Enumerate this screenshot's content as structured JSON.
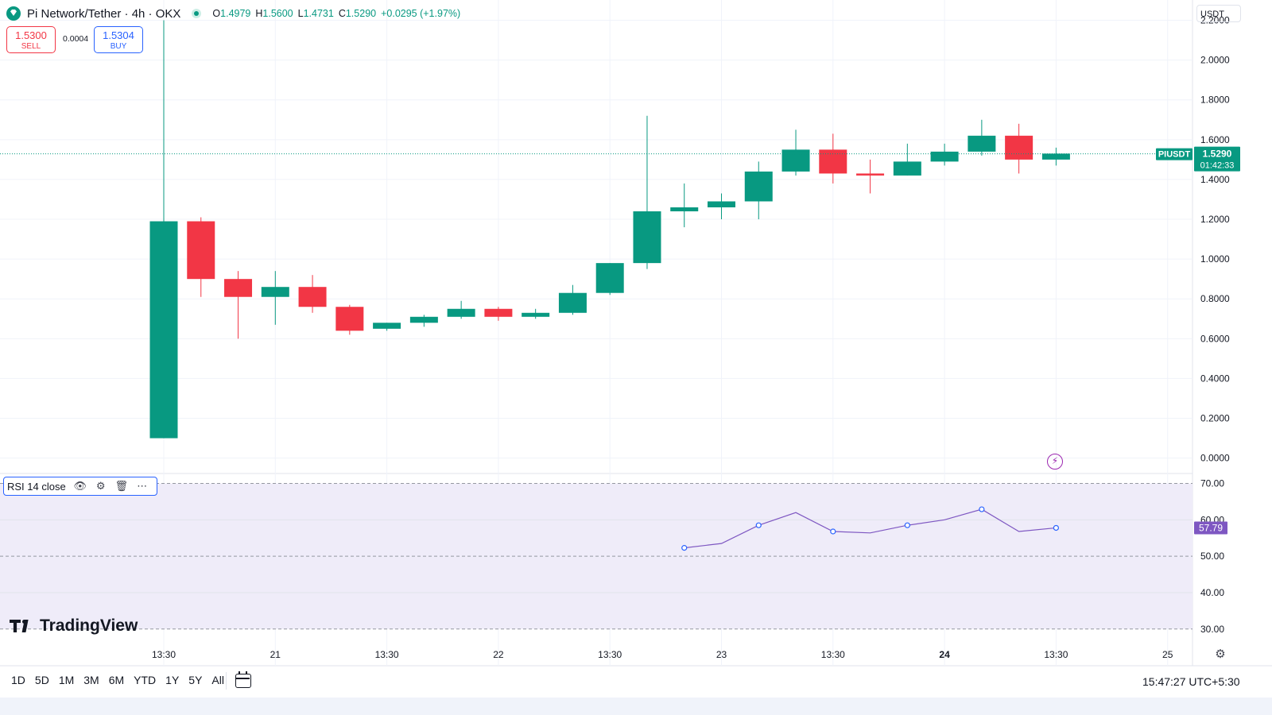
{
  "header": {
    "title": "Pi Network/Tether · 4h · OKX",
    "ohlc": {
      "o_label": "O",
      "o": "1.4979",
      "h_label": "H",
      "h": "1.5600",
      "l_label": "L",
      "l": "1.4731",
      "c_label": "C",
      "c": "1.5290",
      "change": "+0.0295 (+1.97%)"
    },
    "sell": {
      "price": "1.5300",
      "label": "SELL"
    },
    "buy": {
      "price": "1.5304",
      "label": "BUY"
    },
    "spread": "0.0004",
    "currency": "USDT"
  },
  "price_badge": {
    "symbol": "PIUSDT",
    "price": "1.5290",
    "countdown": "01:42:33",
    "value": 1.529
  },
  "rsi": {
    "legend": "RSI 14 close",
    "value_label": "57.79"
  },
  "branding": "TradingView",
  "footer": {
    "ranges": [
      "1D",
      "5D",
      "1M",
      "3M",
      "6M",
      "YTD",
      "1Y",
      "5Y",
      "All"
    ],
    "clock": "15:47:27 UTC+5:30"
  },
  "colors": {
    "up": "#089981",
    "down": "#f23645",
    "rsi_line": "#7e57c2",
    "rsi_band": "#efecf9",
    "badge_rsi": "#7e57c2"
  },
  "icons": {
    "eye": "eye-icon",
    "settings": "gear-icon",
    "delete": "trash-icon",
    "more": "more-icon",
    "alert": "lightning-icon",
    "calendar": "calendar-icon"
  },
  "chart_data": [
    {
      "type": "candlestick",
      "interval": "4h",
      "x": [
        "Jan 20 13:30",
        "Jan 20 17:30",
        "Jan 20 21:30",
        "Jan 21 01:30",
        "Jan 21 05:30",
        "Jan 21 09:30",
        "Jan 21 13:30",
        "Jan 21 17:30",
        "Jan 21 21:30",
        "Jan 22 01:30",
        "Jan 22 05:30",
        "Jan 22 09:30",
        "Jan 22 13:30",
        "Jan 22 17:30",
        "Jan 22 21:30",
        "Jan 23 01:30",
        "Jan 23 05:30",
        "Jan 23 09:30",
        "Jan 23 13:30",
        "Jan 23 17:30",
        "Jan 23 21:30",
        "Jan 24 01:30",
        "Jan 24 05:30",
        "Jan 24 09:30",
        "Jan 24 13:30"
      ],
      "open": [
        0.1,
        1.19,
        0.9,
        0.81,
        0.86,
        0.76,
        0.65,
        0.68,
        0.71,
        0.75,
        0.71,
        0.73,
        0.83,
        0.98,
        1.24,
        1.26,
        1.29,
        1.44,
        1.55,
        1.43,
        1.42,
        1.49,
        1.54,
        1.62,
        1.5
      ],
      "high": [
        2.2,
        1.21,
        0.94,
        0.94,
        0.92,
        0.77,
        0.68,
        0.72,
        0.79,
        0.76,
        0.75,
        0.87,
        0.98,
        1.72,
        1.38,
        1.33,
        1.49,
        1.65,
        1.63,
        1.5,
        1.58,
        1.58,
        1.7,
        1.68,
        1.56
      ],
      "low": [
        0.1,
        0.81,
        0.6,
        0.67,
        0.73,
        0.62,
        0.64,
        0.66,
        0.7,
        0.69,
        0.7,
        0.72,
        0.82,
        0.95,
        1.16,
        1.2,
        1.2,
        1.42,
        1.38,
        1.33,
        1.42,
        1.47,
        1.52,
        1.43,
        1.47
      ],
      "close": [
        1.19,
        0.9,
        0.81,
        0.86,
        0.76,
        0.64,
        0.68,
        0.71,
        0.75,
        0.71,
        0.73,
        0.83,
        0.98,
        1.24,
        1.26,
        1.29,
        1.44,
        1.55,
        1.43,
        1.42,
        1.49,
        1.54,
        1.62,
        1.5,
        1.53
      ],
      "ylim": [
        -0.0733,
        2.3019
      ],
      "y_ticks": [
        0.0,
        0.2,
        0.4,
        0.6,
        0.8,
        1.0,
        1.2,
        1.4,
        1.6,
        1.8,
        2.0,
        2.2
      ],
      "y_tick_labels": [
        "0.0000",
        "0.2000",
        "0.4000",
        "0.6000",
        "0.8000",
        "1.0000",
        "1.2000",
        "1.4000",
        "1.6000",
        "1.8000",
        "2.0000",
        "2.2000"
      ],
      "x_ticks": [
        "Jan 20 13:30",
        "Jan 21 01:30",
        "Jan 21 13:30",
        "Jan 22 01:30",
        "Jan 22 13:30",
        "Jan 23 01:30",
        "Jan 23 13:30",
        "Jan 24 01:30",
        "Jan 24 13:30",
        "Jan 25 01:30"
      ],
      "x_tick_labels": [
        "13:30",
        "21",
        "13:30",
        "22",
        "13:30",
        "23",
        "13:30",
        "24",
        "13:30",
        "25"
      ],
      "x_tick_bold": [
        false,
        false,
        false,
        false,
        false,
        false,
        false,
        true,
        false,
        false
      ],
      "grid": true
    },
    {
      "type": "line",
      "x": [
        "Jan 22 21:30",
        "Jan 23 01:30",
        "Jan 23 05:30",
        "Jan 23 09:30",
        "Jan 23 13:30",
        "Jan 23 17:30",
        "Jan 23 21:30",
        "Jan 24 01:30",
        "Jan 24 05:30",
        "Jan 24 09:30",
        "Jan 24 13:30"
      ],
      "values": [
        52.3,
        53.5,
        58.5,
        62.0,
        56.8,
        56.4,
        58.5,
        60.0,
        62.9,
        56.8,
        57.79
      ],
      "marked": [
        true,
        false,
        true,
        false,
        true,
        false,
        true,
        false,
        true,
        false,
        true
      ],
      "ylim": [
        28.2,
        72.3
      ],
      "bands": [
        30,
        70
      ],
      "y_ticks": [
        30,
        40,
        50,
        60,
        70
      ],
      "y_tick_labels": [
        "30.00",
        "40.00",
        "50.00",
        "60.00",
        "70.00"
      ],
      "grid": true
    }
  ]
}
